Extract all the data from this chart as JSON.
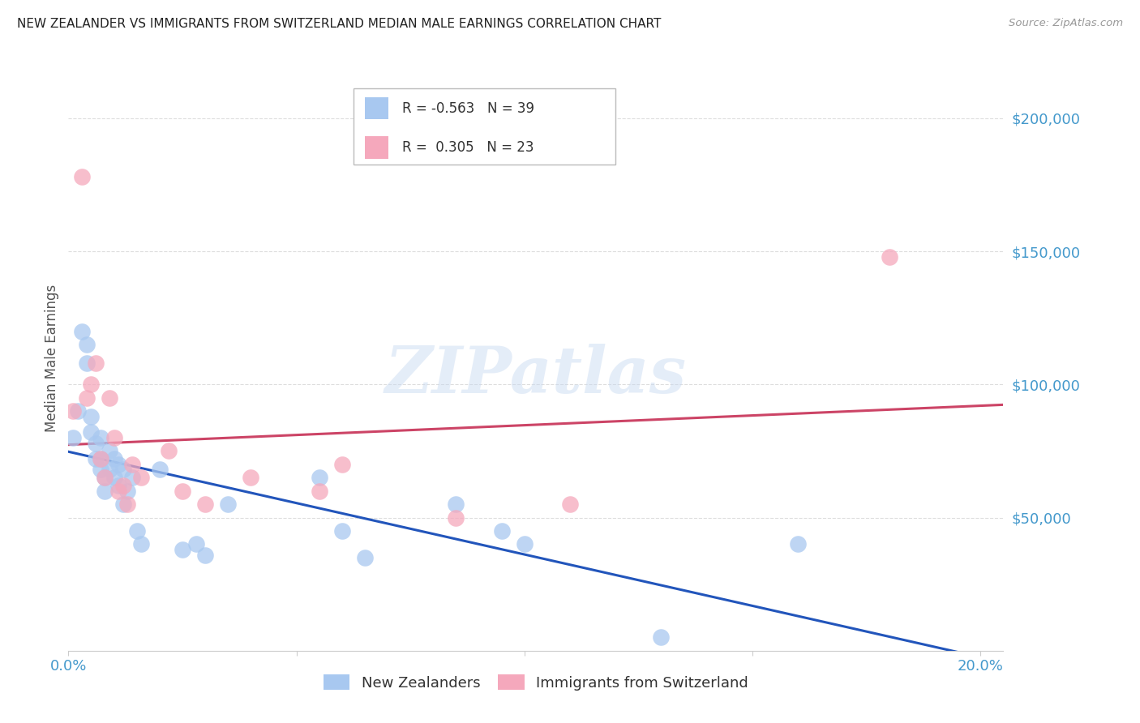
{
  "title": "NEW ZEALANDER VS IMMIGRANTS FROM SWITZERLAND MEDIAN MALE EARNINGS CORRELATION CHART",
  "source": "Source: ZipAtlas.com",
  "ylabel": "Median Male Earnings",
  "watermark": "ZIPatlas",
  "xlim": [
    0.0,
    0.205
  ],
  "ylim": [
    0,
    220000
  ],
  "xticks": [
    0.0,
    0.05,
    0.1,
    0.15,
    0.2
  ],
  "xticklabels": [
    "0.0%",
    "",
    "",
    "",
    "20.0%"
  ],
  "ytick_positions": [
    50000,
    100000,
    150000,
    200000
  ],
  "ytick_labels": [
    "$50,000",
    "$100,000",
    "$150,000",
    "$200,000"
  ],
  "legend1_label": "New Zealanders",
  "legend2_label": "Immigrants from Switzerland",
  "R_nz": -0.563,
  "N_nz": 39,
  "R_sw": 0.305,
  "N_sw": 23,
  "color_nz": "#a8c8f0",
  "color_sw": "#f5a8bc",
  "line_color_nz": "#2255bb",
  "line_color_sw": "#cc4466",
  "background_color": "#ffffff",
  "grid_color": "#dddddd",
  "title_color": "#222222",
  "ylabel_color": "#555555",
  "axis_label_color": "#4499cc",
  "nz_x": [
    0.001,
    0.002,
    0.003,
    0.004,
    0.004,
    0.005,
    0.005,
    0.006,
    0.006,
    0.007,
    0.007,
    0.007,
    0.008,
    0.008,
    0.009,
    0.009,
    0.01,
    0.01,
    0.011,
    0.011,
    0.012,
    0.012,
    0.013,
    0.014,
    0.015,
    0.016,
    0.02,
    0.025,
    0.028,
    0.03,
    0.035,
    0.055,
    0.06,
    0.065,
    0.085,
    0.095,
    0.1,
    0.13,
    0.16
  ],
  "nz_y": [
    80000,
    90000,
    120000,
    115000,
    108000,
    88000,
    82000,
    78000,
    72000,
    80000,
    72000,
    68000,
    65000,
    60000,
    75000,
    68000,
    72000,
    65000,
    70000,
    62000,
    68000,
    55000,
    60000,
    65000,
    45000,
    40000,
    68000,
    38000,
    40000,
    36000,
    55000,
    65000,
    45000,
    35000,
    55000,
    45000,
    40000,
    5000,
    40000
  ],
  "sw_x": [
    0.001,
    0.003,
    0.004,
    0.005,
    0.006,
    0.007,
    0.008,
    0.009,
    0.01,
    0.011,
    0.012,
    0.013,
    0.014,
    0.016,
    0.022,
    0.025,
    0.03,
    0.04,
    0.055,
    0.06,
    0.085,
    0.11,
    0.18
  ],
  "sw_y": [
    90000,
    178000,
    95000,
    100000,
    108000,
    72000,
    65000,
    95000,
    80000,
    60000,
    62000,
    55000,
    70000,
    65000,
    75000,
    60000,
    55000,
    65000,
    60000,
    70000,
    50000,
    55000,
    148000
  ]
}
